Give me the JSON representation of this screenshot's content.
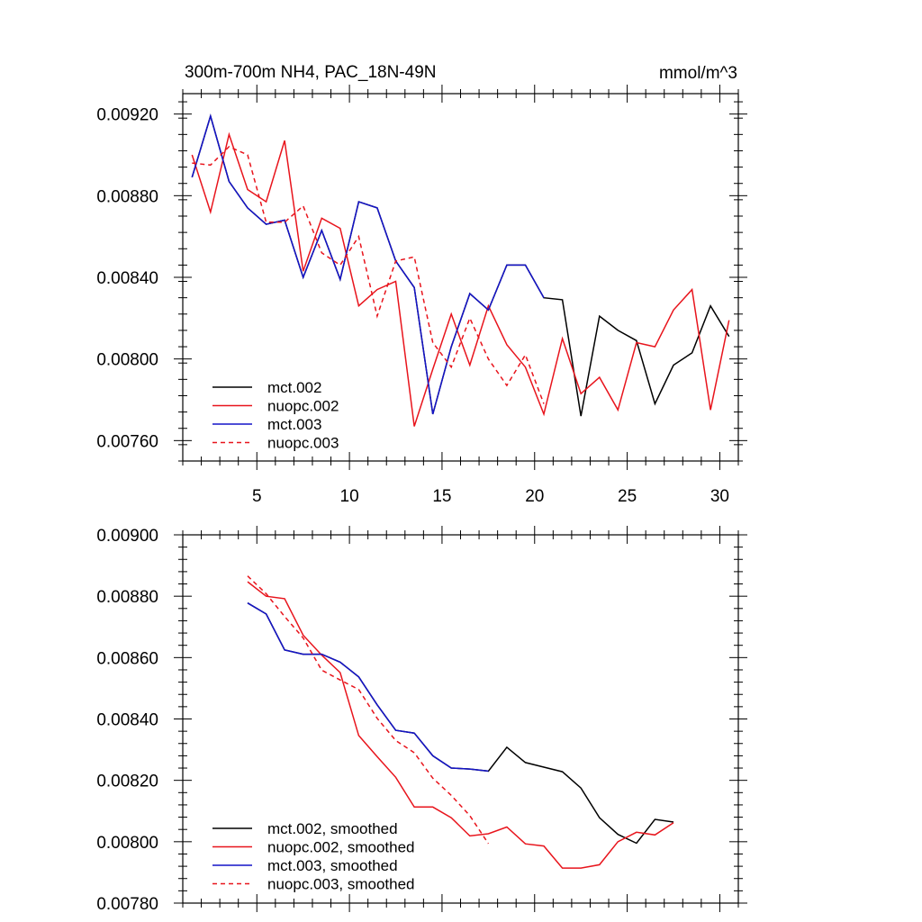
{
  "chart_data": [
    {
      "type": "line",
      "title": "300m-700m NH4, PAC_18N-49N",
      "units": "mmol/m^3",
      "xlim": [
        1,
        31
      ],
      "ylim": [
        0.0075,
        0.0093
      ],
      "xticks": [
        5,
        10,
        15,
        20,
        25,
        30
      ],
      "xtick_labels": [
        "5",
        "10",
        "15",
        "20",
        "25",
        "30"
      ],
      "yticks": [
        0.0076,
        0.008,
        0.0084,
        0.0088,
        0.0092
      ],
      "ytick_labels": [
        "0.00760",
        "0.00800",
        "0.00840",
        "0.00880",
        "0.00920"
      ],
      "series": [
        {
          "name": "mct.002",
          "color": "#000000",
          "dash": false,
          "x": [
            1.5,
            2.5,
            3.5,
            4.5,
            5.5,
            6.5,
            7.5,
            8.5,
            9.5,
            10.5,
            11.5,
            12.5,
            13.5,
            14.5,
            15.5,
            16.5,
            17.5,
            18.5,
            19.5,
            20.5,
            21.5,
            22.5,
            23.5,
            24.5,
            25.5,
            26.5,
            27.5,
            28.5,
            29.5,
            30.5
          ],
          "y": [
            0.00889,
            0.00919,
            0.00887,
            0.00874,
            0.00866,
            0.00868,
            0.0084,
            0.00863,
            0.00839,
            0.00877,
            0.00874,
            0.00848,
            0.00835,
            0.00773,
            0.00806,
            0.00832,
            0.00824,
            0.00846,
            0.00846,
            0.0083,
            0.00829,
            0.00772,
            0.00821,
            0.00814,
            0.00809,
            0.00778,
            0.00797,
            0.00803,
            0.00826,
            0.00811
          ]
        },
        {
          "name": "nuopc.002",
          "color": "#e8141c",
          "dash": false,
          "x": [
            1.5,
            2.5,
            3.5,
            4.5,
            5.5,
            6.5,
            7.5,
            8.5,
            9.5,
            10.5,
            11.5,
            12.5,
            13.5,
            14.5,
            15.5,
            16.5,
            17.5,
            18.5,
            19.5,
            20.5,
            21.5,
            22.5,
            23.5,
            24.5,
            25.5,
            26.5,
            27.5,
            28.5,
            29.5,
            30.5
          ],
          "y": [
            0.009,
            0.00872,
            0.0091,
            0.00883,
            0.00877,
            0.00907,
            0.00843,
            0.00869,
            0.00864,
            0.00826,
            0.00834,
            0.00838,
            0.00767,
            0.00795,
            0.00822,
            0.00797,
            0.00826,
            0.00807,
            0.00796,
            0.00773,
            0.0081,
            0.00783,
            0.00791,
            0.00775,
            0.00808,
            0.00806,
            0.00824,
            0.00834,
            0.00775,
            0.00819
          ]
        },
        {
          "name": "mct.003",
          "color": "#1414c8",
          "dash": false,
          "x": [
            1.5,
            2.5,
            3.5,
            4.5,
            5.5,
            6.5,
            7.5,
            8.5,
            9.5,
            10.5,
            11.5,
            12.5,
            13.5,
            14.5,
            15.5,
            16.5,
            17.5,
            18.5,
            19.5,
            20.5
          ],
          "y": [
            0.00889,
            0.00919,
            0.00887,
            0.00874,
            0.00866,
            0.00868,
            0.0084,
            0.00863,
            0.00839,
            0.00877,
            0.00874,
            0.00848,
            0.00835,
            0.00773,
            0.00806,
            0.00832,
            0.00824,
            0.00846,
            0.00846,
            0.0083
          ]
        },
        {
          "name": "nuopc.003",
          "color": "#e8141c",
          "dash": true,
          "x": [
            1.5,
            2.5,
            3.5,
            4.5,
            5.5,
            6.5,
            7.5,
            8.5,
            9.5,
            10.5,
            11.5,
            12.5,
            13.5,
            14.5,
            15.5,
            16.5,
            17.5,
            18.5,
            19.5,
            20.5
          ],
          "y": [
            0.00896,
            0.00895,
            0.00904,
            0.009,
            0.00867,
            0.00867,
            0.00875,
            0.00852,
            0.00846,
            0.0086,
            0.00821,
            0.00848,
            0.0085,
            0.00808,
            0.00796,
            0.0082,
            0.008,
            0.00787,
            0.00802,
            0.00778
          ]
        }
      ]
    },
    {
      "type": "line",
      "xlim": [
        1,
        31
      ],
      "ylim": [
        0.0078,
        0.009
      ],
      "xticks": [
        5,
        10,
        15,
        20,
        25,
        30
      ],
      "xtick_labels": [],
      "yticks": [
        0.0078,
        0.008,
        0.0082,
        0.0084,
        0.0086,
        0.0088,
        0.009
      ],
      "ytick_labels": [
        "0.00780",
        "0.00800",
        "0.00820",
        "0.00840",
        "0.00860",
        "0.00880",
        "0.00900"
      ],
      "series": [
        {
          "name": "mct.002, smoothed",
          "color": "#000000",
          "dash": false,
          "x": [
            4.5,
            5.5,
            6.5,
            7.5,
            8.5,
            9.5,
            10.5,
            11.5,
            12.5,
            13.5,
            14.5,
            15.5,
            16.5,
            17.5,
            18.5,
            19.5,
            20.5,
            21.5,
            22.5,
            23.5,
            24.5,
            25.5,
            26.5,
            27.5
          ],
          "y": [
            0.008778,
            0.008742,
            0.008625,
            0.008611,
            0.008611,
            0.008585,
            0.008537,
            0.008446,
            0.008363,
            0.008354,
            0.00828,
            0.00824,
            0.008237,
            0.00823,
            0.008308,
            0.008258,
            0.008243,
            0.008228,
            0.008175,
            0.008078,
            0.008024,
            0.007995,
            0.008073,
            0.008064
          ]
        },
        {
          "name": "nuopc.002, smoothed",
          "color": "#e8141c",
          "dash": false,
          "x": [
            4.5,
            5.5,
            6.5,
            7.5,
            8.5,
            9.5,
            10.5,
            11.5,
            12.5,
            13.5,
            14.5,
            15.5,
            16.5,
            17.5,
            18.5,
            19.5,
            20.5,
            21.5,
            22.5,
            23.5,
            24.5,
            25.5,
            26.5,
            27.5
          ],
          "y": [
            0.008847,
            0.0088,
            0.008792,
            0.008673,
            0.008608,
            0.008551,
            0.008346,
            0.008277,
            0.00821,
            0.008113,
            0.008113,
            0.008078,
            0.008019,
            0.008026,
            0.008048,
            0.007993,
            0.007986,
            0.007914,
            0.007914,
            0.007925,
            0.008,
            0.008031,
            0.008022,
            0.008062
          ]
        },
        {
          "name": "mct.003, smoothed",
          "color": "#1414c8",
          "dash": false,
          "x": [
            4.5,
            5.5,
            6.5,
            7.5,
            8.5,
            9.5,
            10.5,
            11.5,
            12.5,
            13.5,
            14.5,
            15.5,
            16.5,
            17.5
          ],
          "y": [
            0.008778,
            0.008742,
            0.008625,
            0.008611,
            0.008611,
            0.008585,
            0.008537,
            0.008446,
            0.008363,
            0.008354,
            0.00828,
            0.00824,
            0.008237,
            0.00823
          ]
        },
        {
          "name": "nuopc.003, smoothed",
          "color": "#e8141c",
          "dash": true,
          "x": [
            4.5,
            5.5,
            6.5,
            7.5,
            8.5,
            9.5,
            10.5,
            11.5,
            12.5,
            13.5,
            14.5,
            15.5,
            16.5,
            17.5
          ],
          "y": [
            0.008866,
            0.008808,
            0.008734,
            0.008664,
            0.008559,
            0.008527,
            0.008496,
            0.008402,
            0.00833,
            0.00829,
            0.008207,
            0.008151,
            0.008085,
            0.007994
          ]
        }
      ]
    }
  ]
}
